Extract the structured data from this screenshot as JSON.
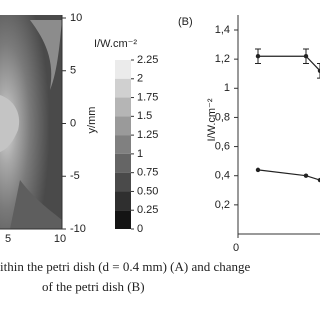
{
  "chart_data": [
    {
      "type": "contour",
      "y_label": "y/mm",
      "colorbar_title": "I/W.cm⁻²",
      "xticks": [
        5,
        10
      ],
      "yticks": [
        10,
        5,
        0,
        -5,
        -10
      ],
      "ylim": [
        -10,
        10
      ],
      "colorbar_ticks": [
        2.25,
        2,
        1.75,
        1.5,
        1.25,
        1,
        {
          "value": 0.75,
          "label": "0.75"
        },
        {
          "value": 0.5,
          "label": "0.50"
        },
        0.25,
        0
      ],
      "colorbar_lim": [
        0,
        2.25
      ]
    },
    {
      "type": "line",
      "panel_label": "(B)",
      "y_label": "I/W.cm⁻²",
      "x": [
        0.5,
        1.7,
        2.05
      ],
      "xticks": [
        0
      ],
      "xlim": [
        0,
        2.05
      ],
      "ylim": [
        0,
        1.4
      ],
      "yticks": [
        {
          "value": 1.4,
          "label": "1,4"
        },
        {
          "value": 1.2,
          "label": "1,2"
        },
        1,
        {
          "value": 0.8,
          "label": "0,8"
        },
        {
          "value": 0.6,
          "label": "0,6"
        },
        {
          "value": 0.4,
          "label": "0,4"
        },
        {
          "value": 0.2,
          "label": "0,2"
        }
      ],
      "series": [
        {
          "color": "#222222",
          "values": [
            1.22,
            1.22,
            1.12
          ],
          "errors": [
            0.05,
            0.05,
            0.05
          ]
        },
        {
          "color": "#222222",
          "values": [
            0.44,
            0.4,
            0.37
          ]
        }
      ]
    }
  ],
  "caption": [
    "ithin the petri dish (d = 0.4 mm) (A) and change",
    "of the petri dish (B)"
  ]
}
